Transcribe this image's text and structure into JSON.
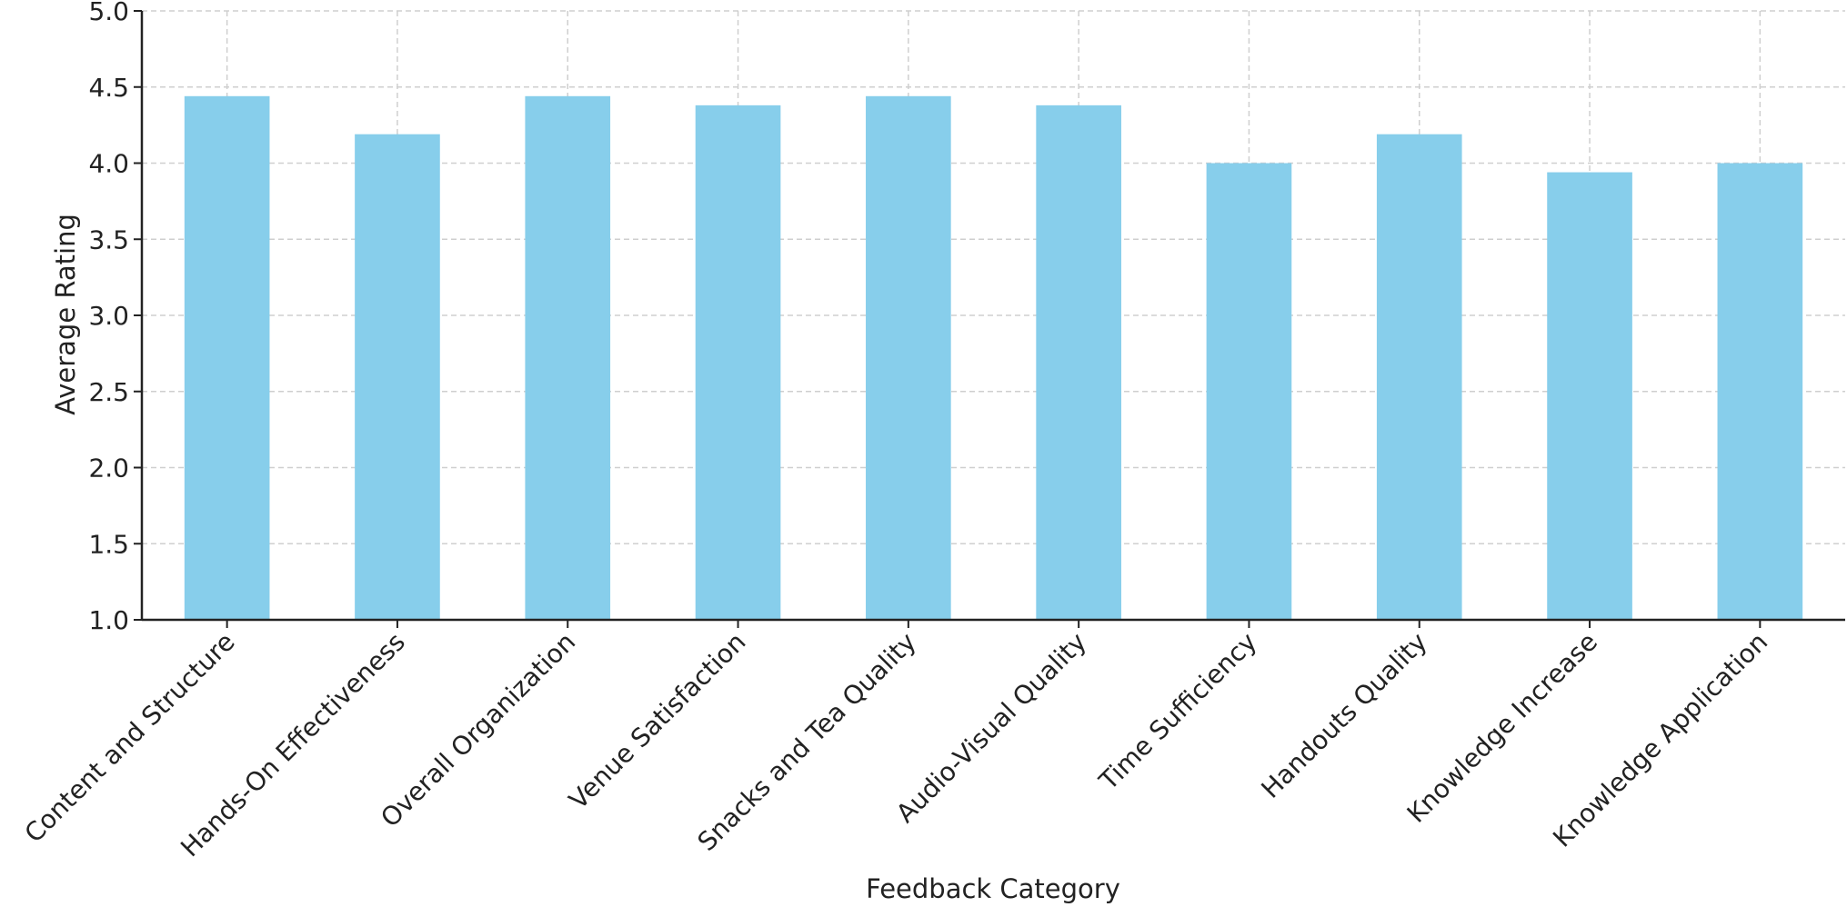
{
  "chart_data": {
    "type": "bar",
    "title": "",
    "xlabel": "Feedback Category",
    "ylabel": "Average Rating",
    "categories": [
      "Content and Structure",
      "Hands-On Effectiveness",
      "Overall Organization",
      "Venue Satisfaction",
      "Snacks and Tea Quality",
      "Audio-Visual Quality",
      "Time Sufficiency",
      "Handouts Quality",
      "Knowledge Increase",
      "Knowledge Application"
    ],
    "values": [
      4.44,
      4.19,
      4.44,
      4.38,
      4.44,
      4.38,
      4.0,
      4.19,
      3.94,
      4.0
    ],
    "ylim": [
      1.0,
      5.0
    ],
    "yticks": [
      "1.0",
      "1.5",
      "2.0",
      "2.5",
      "3.0",
      "3.5",
      "4.0",
      "4.5",
      "5.0"
    ],
    "grid": true,
    "bar_color": "#87CEEB"
  }
}
